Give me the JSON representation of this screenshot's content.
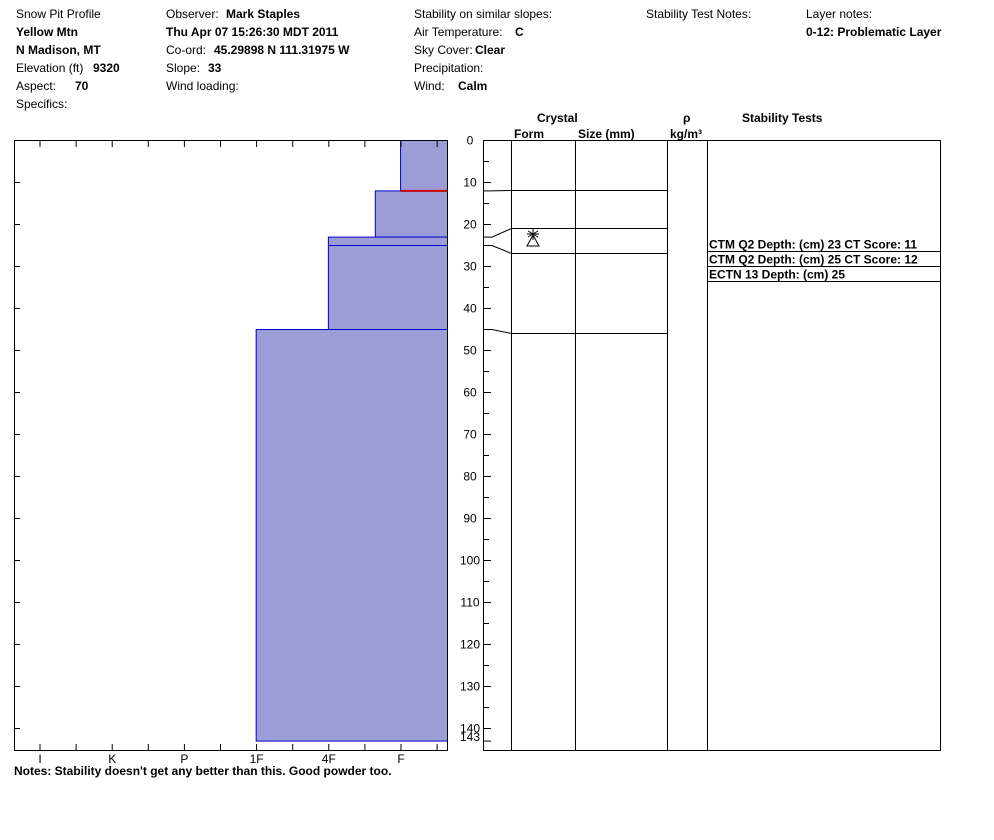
{
  "header": {
    "col1": {
      "title": "Snow Pit Profile",
      "location": "Yellow Mtn",
      "region": "N Madison, MT",
      "elevation_label": "Elevation (ft)",
      "elevation_value": "9320",
      "aspect_label": "Aspect:",
      "aspect_value": "70",
      "specifics_label": "Specifics:"
    },
    "col2": {
      "observer_label": "Observer:",
      "observer_value": "Mark Staples",
      "datetime": "Thu Apr 07 15:26:30 MDT 2011",
      "coord_label": "Co-ord:",
      "coord_value": "45.29898 N 111.31975 W",
      "slope_label": "Slope:",
      "slope_value": "33",
      "wind_loading_label": "Wind loading:"
    },
    "col3": {
      "stability_label": "Stability on similar slopes:",
      "air_temp_label": "Air Temperature:",
      "air_temp_value": "C",
      "sky_label": "Sky Cover:",
      "sky_value": "Clear",
      "precip_label": "Precipitation:",
      "wind_label": "Wind:",
      "wind_value": "Calm"
    },
    "col4": {
      "stability_test_notes_label": "Stability Test Notes:"
    },
    "col5": {
      "layer_notes_label": "Layer notes:",
      "layer_note_1": "0-12: Problematic Layer"
    }
  },
  "columns": {
    "crystal": "Crystal",
    "form": "Form",
    "size": "Size (mm)",
    "rho": "ρ",
    "density_unit": "kg/m³",
    "stability_tests": "Stability Tests"
  },
  "stability_tests": [
    {
      "text": "CTM Q2 Depth: (cm) 23 CT Score: 11",
      "depth": 26
    },
    {
      "text": "CTM Q2 Depth: (cm) 25 CT Score: 12",
      "depth": 29.5
    },
    {
      "text": "ECTN 13   Depth: (cm) 25",
      "depth": 33
    }
  ],
  "notes": "Notes:  Stability doesn't get any better than this.  Good powder too.",
  "colors": {
    "layer_fill": "#9c9cd6",
    "layer_stroke": "#0000cc",
    "problem_line": "#cc0000"
  },
  "chart_data": {
    "type": "bar",
    "title": "Snow Pit Profile",
    "ylabel": "",
    "depth_ticks": [
      "0",
      "10",
      "20",
      "30",
      "40",
      "50",
      "60",
      "70",
      "80",
      "90",
      "100",
      "110",
      "120",
      "130",
      "140",
      "143"
    ],
    "depth_tick_values": [
      0,
      10,
      20,
      30,
      40,
      50,
      60,
      70,
      80,
      90,
      100,
      110,
      120,
      130,
      140,
      143
    ],
    "ylim": [
      0,
      143
    ],
    "hardness_scale": [
      "F",
      "4F",
      "1F",
      "P",
      "K",
      "I"
    ],
    "hardness_labels": [
      "I",
      "K",
      "P",
      "1F",
      "4F",
      "F"
    ],
    "layers": [
      {
        "top": 0,
        "bottom": 12,
        "hardness_index": 0.65
      },
      {
        "top": 12,
        "bottom": 23,
        "hardness_index": 1.0
      },
      {
        "top": 23,
        "bottom": 45,
        "hardness_index": 1.65
      },
      {
        "top": 45,
        "bottom": 143,
        "hardness_index": 2.65
      }
    ],
    "layer_boundaries": [
      12,
      23,
      25,
      45,
      143
    ],
    "problem_layer_depth": 12,
    "grain_symbol_depth": 23
  }
}
